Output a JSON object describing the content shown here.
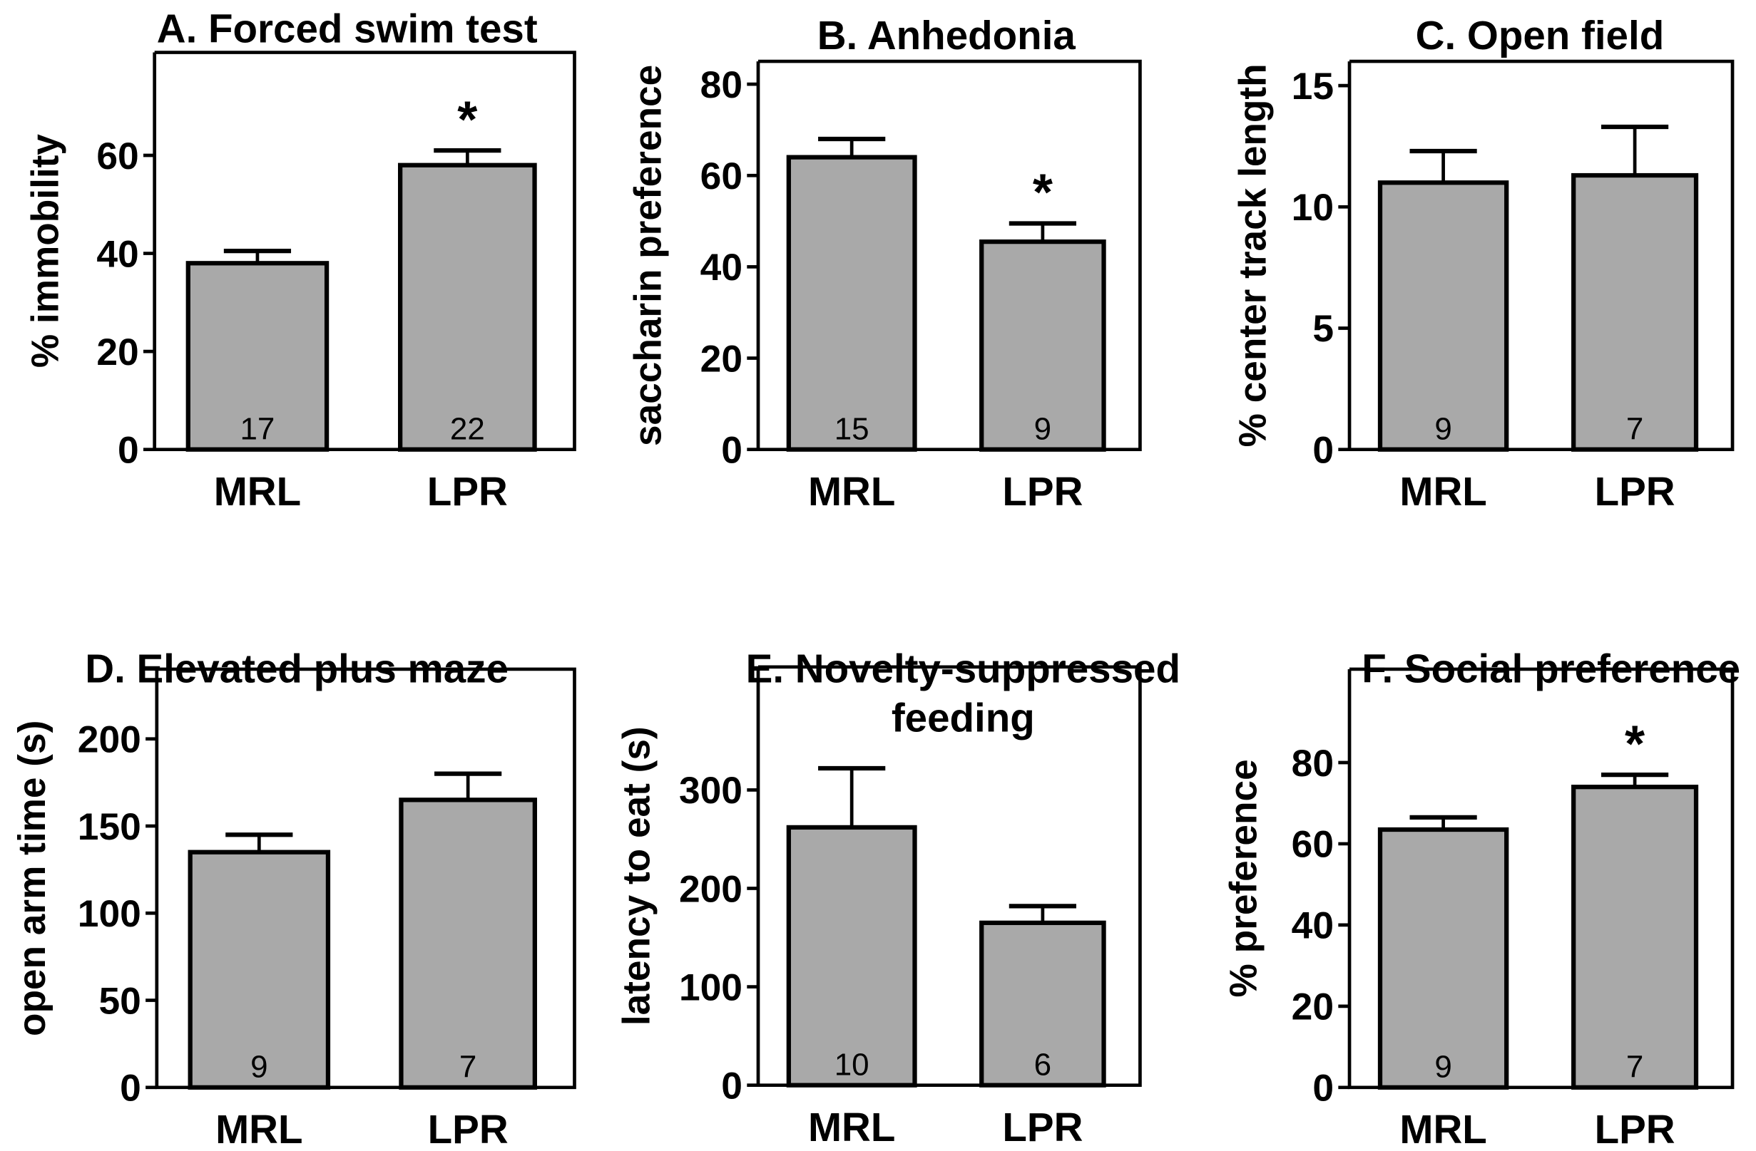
{
  "chart_data": [
    {
      "type": "bar",
      "title": "A. Forced swim test",
      "ylabel": "% immobility",
      "categories": [
        "MRL",
        "LPR"
      ],
      "values": [
        38,
        58
      ],
      "errors": [
        2.5,
        3
      ],
      "n": [
        "17",
        "22"
      ],
      "significant": [
        false,
        true
      ],
      "yticks": [
        0,
        20,
        40,
        60
      ],
      "ylim": [
        0,
        81
      ]
    },
    {
      "type": "bar",
      "title": "B. Anhedonia",
      "ylabel": "saccharin preference",
      "categories": [
        "MRL",
        "LPR"
      ],
      "values": [
        64,
        45.5
      ],
      "errors": [
        4,
        4
      ],
      "n": [
        "15",
        "9"
      ],
      "significant": [
        false,
        true
      ],
      "yticks": [
        0,
        20,
        40,
        60,
        80
      ],
      "ylim": [
        0,
        85
      ]
    },
    {
      "type": "bar",
      "title": "C. Open field",
      "ylabel": "% center track length",
      "categories": [
        "MRL",
        "LPR"
      ],
      "values": [
        11,
        11.3
      ],
      "errors": [
        1.3,
        2
      ],
      "n": [
        "9",
        "7"
      ],
      "significant": [
        false,
        false
      ],
      "yticks": [
        0,
        5,
        10,
        15
      ],
      "ylim": [
        0,
        16
      ]
    },
    {
      "type": "bar",
      "title": "D. Elevated plus maze",
      "ylabel": "open arm time (s)",
      "categories": [
        "MRL",
        "LPR"
      ],
      "values": [
        135,
        165
      ],
      "errors": [
        10,
        15
      ],
      "n": [
        "9",
        "7"
      ],
      "significant": [
        false,
        false
      ],
      "yticks": [
        0,
        50,
        100,
        150,
        200
      ],
      "ylim": [
        0,
        240
      ]
    },
    {
      "type": "bar",
      "title": "E. Novelty-suppressed feeding",
      "title_lines": [
        "E. Novelty-suppressed",
        "feeding"
      ],
      "ylabel": "latency to eat (s)",
      "categories": [
        "MRL",
        "LPR"
      ],
      "values": [
        262,
        165
      ],
      "errors": [
        60,
        17
      ],
      "n": [
        "10",
        "6"
      ],
      "significant": [
        false,
        false
      ],
      "yticks": [
        0,
        100,
        200,
        300
      ],
      "ylim": [
        0,
        425
      ]
    },
    {
      "type": "bar",
      "title": "F. Social preference",
      "ylabel": "% preference",
      "categories": [
        "MRL",
        "LPR"
      ],
      "values": [
        63.5,
        74
      ],
      "errors": [
        3,
        3
      ],
      "n": [
        "9",
        "7"
      ],
      "significant": [
        false,
        true
      ],
      "yticks": [
        0,
        20,
        40,
        60,
        80
      ],
      "ylim": [
        0,
        103
      ]
    }
  ],
  "colors": {
    "bar_fill": "#a9a9a9",
    "stroke": "#000000"
  },
  "significance_marker": "*"
}
